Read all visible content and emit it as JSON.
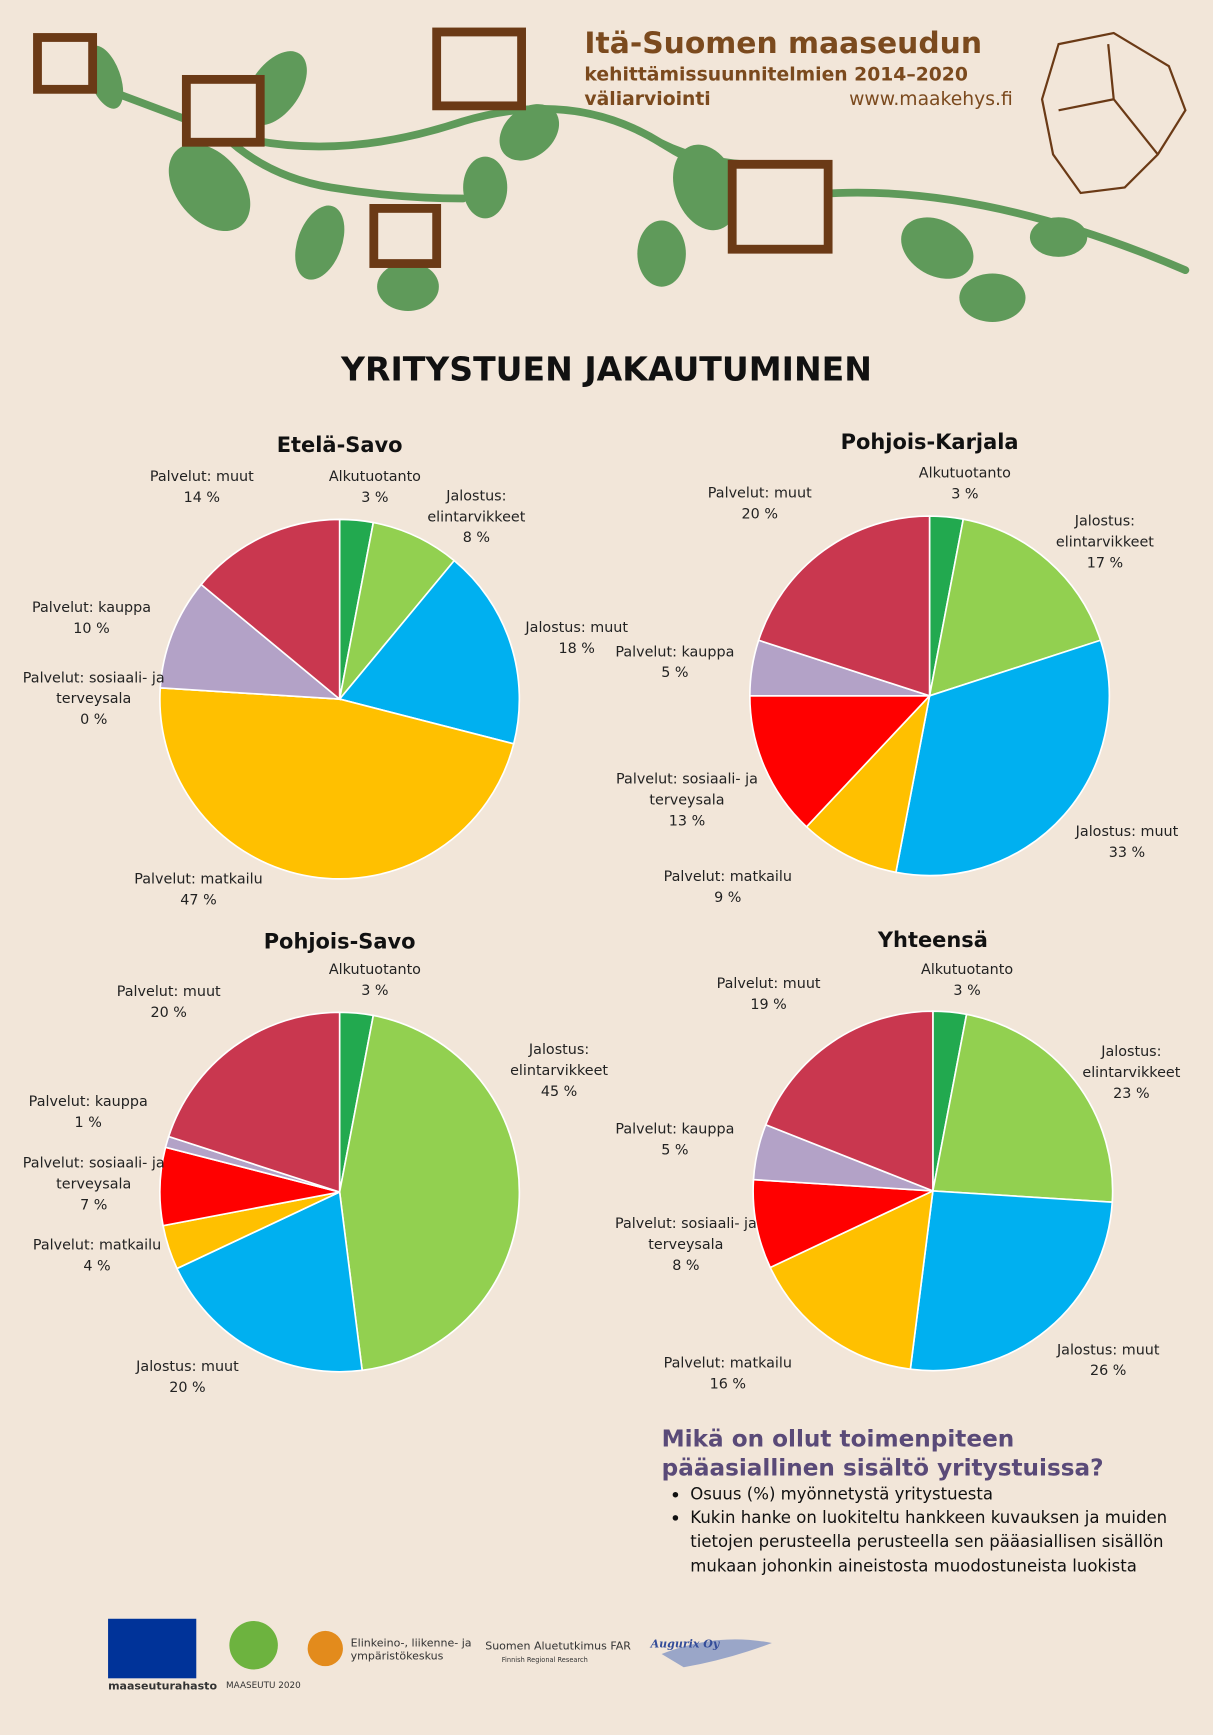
{
  "header": {
    "title": "Itä-Suomen maaseudun",
    "subtitle": "kehittämissuunnitelmien 2014–2020",
    "subtitle2": "väliarviointi",
    "url": "www.maakehys.fi"
  },
  "title": "YRITYSTUEN JAKAUTUMINEN",
  "chart_data": [
    {
      "type": "pie",
      "title": "Etelä-Savo",
      "categories": [
        "Alkutuotanto",
        "Jalostus: elintarvikkeet",
        "Jalostus: muut",
        "Palvelut: matkailu",
        "Palvelut: sosiaali- ja terveysala",
        "Palvelut: kauppa",
        "Palvelut: muut"
      ],
      "values": [
        3,
        8,
        18,
        47,
        0,
        10,
        14
      ],
      "value_labels": [
        "3 %",
        "8 %",
        "18 %",
        "47 %",
        "0 %",
        "10 %",
        "14 %"
      ],
      "colors": [
        "#22a94f",
        "#92d050",
        "#00b0f0",
        "#ffc000",
        "#ff0000",
        "#b3a2c7",
        "#c9374f"
      ]
    },
    {
      "type": "pie",
      "title": "Pohjois-Karjala",
      "categories": [
        "Alkutuotanto",
        "Jalostus: elintarvikkeet",
        "Jalostus: muut",
        "Palvelut: matkailu",
        "Palvelut: sosiaali- ja terveysala",
        "Palvelut: kauppa",
        "Palvelut: muut"
      ],
      "values": [
        3,
        17,
        33,
        9,
        13,
        5,
        20
      ],
      "value_labels": [
        "3 %",
        "17 %",
        "33 %",
        "9 %",
        "13 %",
        "5 %",
        "20 %"
      ],
      "colors": [
        "#22a94f",
        "#92d050",
        "#00b0f0",
        "#ffc000",
        "#ff0000",
        "#b3a2c7",
        "#c9374f"
      ]
    },
    {
      "type": "pie",
      "title": "Pohjois-Savo",
      "categories": [
        "Alkutuotanto",
        "Jalostus: elintarvikkeet",
        "Jalostus: muut",
        "Palvelut: matkailu",
        "Palvelut: sosiaali- ja terveysala",
        "Palvelut: kauppa",
        "Palvelut: muut"
      ],
      "values": [
        3,
        45,
        20,
        4,
        7,
        1,
        20
      ],
      "value_labels": [
        "3 %",
        "45 %",
        "20 %",
        "4 %",
        "7 %",
        "1 %",
        "20 %"
      ],
      "colors": [
        "#22a94f",
        "#92d050",
        "#00b0f0",
        "#ffc000",
        "#ff0000",
        "#b3a2c7",
        "#c9374f"
      ]
    },
    {
      "type": "pie",
      "title": "Yhteensä",
      "categories": [
        "Alkutuotanto",
        "Jalostus: elintarvikkeet",
        "Jalostus: muut",
        "Palvelut: matkailu",
        "Palvelut: sosiaali- ja terveysala",
        "Palvelut: kauppa",
        "Palvelut: muut"
      ],
      "values": [
        3,
        23,
        26,
        16,
        8,
        5,
        19
      ],
      "value_labels": [
        "3 %",
        "23 %",
        "26 %",
        "16 %",
        "8 %",
        "5 %",
        "19 %"
      ],
      "colors": [
        "#22a94f",
        "#92d050",
        "#00b0f0",
        "#ffc000",
        "#ff0000",
        "#b3a2c7",
        "#c9374f"
      ]
    }
  ],
  "note": {
    "title": "Mikä on ollut toimenpiteen pääasiallinen sisältö yritystuissa?",
    "bullets": [
      "Osuus (%) myönnetystä yritystuesta",
      "Kukin hanke on luokiteltu hankkeen kuvauksen ja muiden tietojen perusteella perusteella sen pääasiallisen sisällön mukaan johonkin aineistosta muodostuneista luokista"
    ]
  },
  "logos": [
    "maaseuturahasto",
    "MAASEUTU 2020",
    "Elinkeino-, liikenne- ja ympäristökeskus",
    "Suomen Aluetutkimus FAR",
    "Finnish Regional Research",
    "Augurix Oy"
  ]
}
